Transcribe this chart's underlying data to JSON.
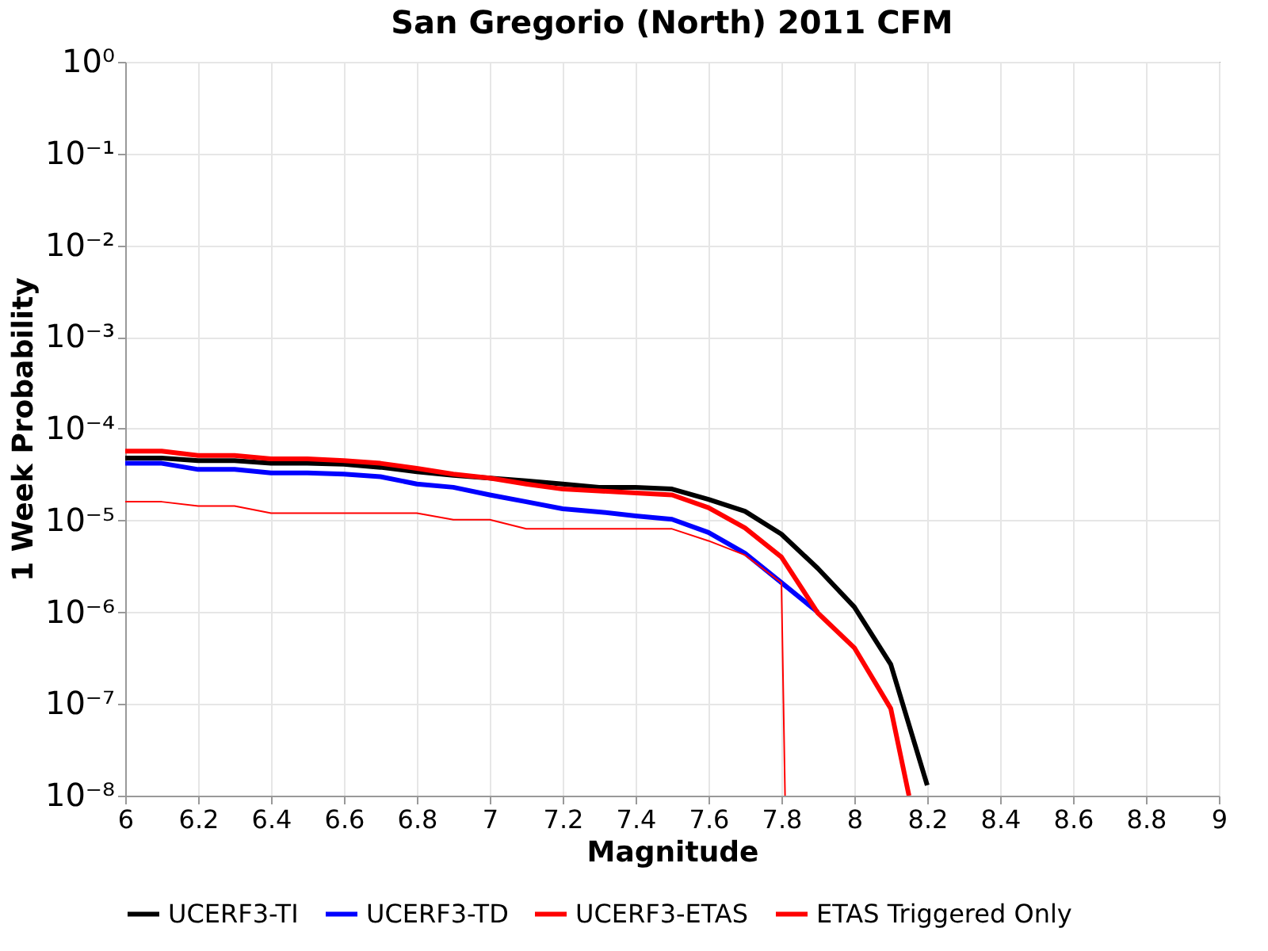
{
  "chart_data": {
    "type": "line",
    "title": "San Gregorio (North) 2011 CFM",
    "xlabel": "Magnitude",
    "ylabel": "1 Week Probability",
    "log": "y",
    "grid": true,
    "legend": "bottom",
    "marker": "none",
    "line_style": "solid",
    "xlim": [
      6,
      9
    ],
    "xticks": [
      6,
      6.2,
      6.4,
      6.6,
      6.8,
      7,
      7.2,
      7.4,
      7.6,
      7.8,
      8,
      8.2,
      8.4,
      8.6,
      8.8,
      9
    ],
    "ylim": [
      1e-08,
      1
    ],
    "yticks": [
      {
        "value": 1e-08,
        "label": "10⁻⁸"
      },
      {
        "value": 1e-07,
        "label": "10⁻⁷"
      },
      {
        "value": 1e-06,
        "label": "10⁻⁶"
      },
      {
        "value": 1e-05,
        "label": "10⁻⁵"
      },
      {
        "value": 0.0001,
        "label": "10⁻⁴"
      },
      {
        "value": 0.001,
        "label": "10⁻³"
      },
      {
        "value": 0.01,
        "label": "10⁻²"
      },
      {
        "value": 0.1,
        "label": "10⁻¹"
      },
      {
        "value": 1,
        "label": "10⁰"
      }
    ],
    "series": [
      {
        "name": "UCERF3-TI",
        "color": "#000000",
        "x": [
          6,
          6.1,
          6.2,
          6.3,
          6.4,
          6.5,
          6.6,
          6.7,
          6.8,
          6.9,
          7,
          7.1,
          7.2,
          7.3,
          7.4,
          7.5,
          7.6,
          7.7,
          7.8,
          7.9,
          8,
          8.1,
          8.2
        ],
        "values": [
          4.8e-05,
          4.8e-05,
          4.5e-05,
          4.5e-05,
          4.2e-05,
          4.2e-05,
          4.1e-05,
          3.8e-05,
          3.4e-05,
          3.1e-05,
          2.9e-05,
          2.7e-05,
          2.5e-05,
          2.3e-05,
          2.3e-05,
          2.2e-05,
          1.7e-05,
          1.26e-05,
          7.1e-06,
          3e-06,
          1.14e-06,
          2.7e-07,
          1.3e-08
        ]
      },
      {
        "name": "UCERF3-TD",
        "color": "#0000ff",
        "x": [
          6,
          6.1,
          6.2,
          6.3,
          6.4,
          6.5,
          6.6,
          6.7,
          6.8,
          6.9,
          7,
          7.1,
          7.2,
          7.3,
          7.4,
          7.5,
          7.6,
          7.7,
          7.8,
          7.9
        ],
        "values": [
          4.2e-05,
          4.2e-05,
          3.6e-05,
          3.6e-05,
          3.3e-05,
          3.3e-05,
          3.2e-05,
          3e-05,
          2.5e-05,
          2.3e-05,
          1.9e-05,
          1.6e-05,
          1.34e-05,
          1.24e-05,
          1.12e-05,
          1.03e-05,
          7.4e-06,
          4.4e-06,
          2.1e-06,
          1e-06
        ]
      },
      {
        "name": "UCERF3-ETAS",
        "color": "#ff0000",
        "x": [
          6,
          6.1,
          6.2,
          6.3,
          6.4,
          6.5,
          6.6,
          6.7,
          6.8,
          6.9,
          7,
          7.1,
          7.2,
          7.3,
          7.4,
          7.5,
          7.6,
          7.7,
          7.8,
          7.9,
          8,
          8.1,
          8.15
        ],
        "values": [
          5.7e-05,
          5.7e-05,
          5.1e-05,
          5.1e-05,
          4.7e-05,
          4.7e-05,
          4.5e-05,
          4.2e-05,
          3.7e-05,
          3.2e-05,
          2.9e-05,
          2.5e-05,
          2.2e-05,
          2.1e-05,
          2e-05,
          1.9e-05,
          1.38e-05,
          8.3e-06,
          4e-06,
          9.8e-07,
          4.1e-07,
          8.9e-08,
          1e-08
        ]
      },
      {
        "name": "ETAS Triggered Only",
        "color": "#ff0000",
        "x": [
          6,
          6.1,
          6.2,
          6.3,
          6.4,
          6.5,
          6.6,
          6.7,
          6.8,
          6.9,
          7,
          7.1,
          7.2,
          7.3,
          7.4,
          7.5,
          7.6,
          7.7,
          7.8,
          7.81
        ],
        "values": [
          1.6e-05,
          1.6e-05,
          1.44e-05,
          1.44e-05,
          1.2e-05,
          1.2e-05,
          1.2e-05,
          1.2e-05,
          1.2e-05,
          1.02e-05,
          1.02e-05,
          8.1e-06,
          8.1e-06,
          8.1e-06,
          8.1e-06,
          8.1e-06,
          6e-06,
          4.2e-06,
          2.1e-06,
          1e-08
        ]
      }
    ]
  }
}
